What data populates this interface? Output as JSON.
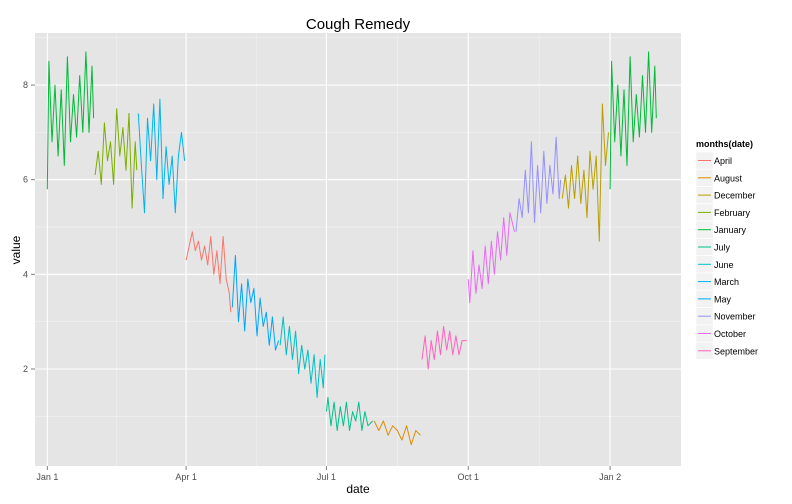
{
  "chart_data": {
    "type": "line",
    "title": "Cough Remedy",
    "xlabel": "date",
    "ylabel": "value",
    "xlim": [
      "2010-12-24",
      "2012-02-16"
    ],
    "ylim": [
      -0.05,
      9.1
    ],
    "x_ticks": [
      {
        "date": "2011-01-01",
        "label": "Jan 1"
      },
      {
        "date": "2011-04-01",
        "label": "Apr 1"
      },
      {
        "date": "2011-07-01",
        "label": "Jul 1"
      },
      {
        "date": "2011-10-01",
        "label": "Oct 1"
      },
      {
        "date": "2012-01-01",
        "label": "Jan 2"
      }
    ],
    "y_ticks": [
      2,
      4,
      6,
      8
    ],
    "grid": true,
    "legend_title": "months(date)",
    "legend_position": "right",
    "series": [
      {
        "name": "April",
        "color": "#F8766D",
        "points": [
          [
            "2011-04-01",
            4.3
          ],
          [
            "2011-04-03",
            4.6
          ],
          [
            "2011-04-05",
            4.9
          ],
          [
            "2011-04-07",
            4.5
          ],
          [
            "2011-04-09",
            4.7
          ],
          [
            "2011-04-11",
            4.3
          ],
          [
            "2011-04-13",
            4.6
          ],
          [
            "2011-04-15",
            4.2
          ],
          [
            "2011-04-17",
            4.8
          ],
          [
            "2011-04-19",
            4.0
          ],
          [
            "2011-04-21",
            4.5
          ],
          [
            "2011-04-23",
            3.8
          ],
          [
            "2011-04-25",
            4.8
          ],
          [
            "2011-04-27",
            3.9
          ],
          [
            "2011-04-29",
            3.6
          ],
          [
            "2011-04-30",
            3.2
          ]
        ]
      },
      {
        "name": "August",
        "color": "#DE8C00",
        "points": [
          [
            "2011-08-01",
            0.9
          ],
          [
            "2011-08-04",
            0.7
          ],
          [
            "2011-08-07",
            0.9
          ],
          [
            "2011-08-10",
            0.6
          ],
          [
            "2011-08-13",
            0.8
          ],
          [
            "2011-08-16",
            0.7
          ],
          [
            "2011-08-19",
            0.5
          ],
          [
            "2011-08-22",
            0.8
          ],
          [
            "2011-08-25",
            0.4
          ],
          [
            "2011-08-28",
            0.7
          ],
          [
            "2011-08-31",
            0.6
          ]
        ]
      },
      {
        "name": "December",
        "color": "#B79F00",
        "points": [
          [
            "2011-12-01",
            5.6
          ],
          [
            "2011-12-03",
            6.1
          ],
          [
            "2011-12-05",
            5.4
          ],
          [
            "2011-12-07",
            6.3
          ],
          [
            "2011-12-09",
            5.6
          ],
          [
            "2011-12-11",
            6.5
          ],
          [
            "2011-12-13",
            5.5
          ],
          [
            "2011-12-15",
            6.2
          ],
          [
            "2011-12-17",
            5.2
          ],
          [
            "2011-12-19",
            6.6
          ],
          [
            "2011-12-21",
            5.8
          ],
          [
            "2011-12-23",
            6.5
          ],
          [
            "2011-12-25",
            4.7
          ],
          [
            "2011-12-27",
            7.6
          ],
          [
            "2011-12-29",
            6.3
          ],
          [
            "2011-12-31",
            7.0
          ]
        ]
      },
      {
        "name": "February",
        "color": "#7CAE00",
        "points": [
          [
            "2011-02-01",
            6.1
          ],
          [
            "2011-02-03",
            6.6
          ],
          [
            "2011-02-05",
            5.9
          ],
          [
            "2011-02-07",
            7.2
          ],
          [
            "2011-02-09",
            6.4
          ],
          [
            "2011-02-11",
            6.8
          ],
          [
            "2011-02-13",
            5.9
          ],
          [
            "2011-02-15",
            7.5
          ],
          [
            "2011-02-17",
            6.5
          ],
          [
            "2011-02-19",
            7.1
          ],
          [
            "2011-02-21",
            6.2
          ],
          [
            "2011-02-23",
            7.4
          ],
          [
            "2011-02-25",
            5.4
          ],
          [
            "2011-02-27",
            6.8
          ],
          [
            "2011-02-28",
            6.2
          ]
        ]
      },
      {
        "name": "January",
        "color": "#00BA38",
        "points": [
          [
            "2011-01-01",
            5.8
          ],
          [
            "2011-01-02",
            8.5
          ],
          [
            "2011-01-04",
            6.8
          ],
          [
            "2011-01-06",
            8.0
          ],
          [
            "2011-01-08",
            6.5
          ],
          [
            "2011-01-10",
            7.9
          ],
          [
            "2011-01-12",
            6.3
          ],
          [
            "2011-01-14",
            8.6
          ],
          [
            "2011-01-16",
            6.8
          ],
          [
            "2011-01-18",
            7.8
          ],
          [
            "2011-01-20",
            6.9
          ],
          [
            "2011-01-22",
            8.2
          ],
          [
            "2011-01-24",
            7.0
          ],
          [
            "2011-01-26",
            8.7
          ],
          [
            "2011-01-28",
            7.0
          ],
          [
            "2011-01-30",
            8.4
          ],
          [
            "2011-01-31",
            7.3
          ]
        ]
      },
      {
        "name": "July",
        "color": "#00C08B",
        "points": [
          [
            "2011-07-01",
            1.1
          ],
          [
            "2011-07-02",
            1.4
          ],
          [
            "2011-07-04",
            0.8
          ],
          [
            "2011-07-06",
            1.3
          ],
          [
            "2011-07-08",
            0.7
          ],
          [
            "2011-07-10",
            1.2
          ],
          [
            "2011-07-12",
            0.8
          ],
          [
            "2011-07-14",
            1.3
          ],
          [
            "2011-07-16",
            0.7
          ],
          [
            "2011-07-18",
            1.1
          ],
          [
            "2011-07-20",
            0.9
          ],
          [
            "2011-07-22",
            1.3
          ],
          [
            "2011-07-24",
            0.7
          ],
          [
            "2011-07-26",
            1.1
          ],
          [
            "2011-07-28",
            0.8
          ],
          [
            "2011-07-31",
            0.9
          ]
        ]
      },
      {
        "name": "June",
        "color": "#00BFC4",
        "points": [
          [
            "2011-06-01",
            2.5
          ],
          [
            "2011-06-03",
            3.1
          ],
          [
            "2011-06-05",
            2.3
          ],
          [
            "2011-06-07",
            2.9
          ],
          [
            "2011-06-09",
            2.2
          ],
          [
            "2011-06-11",
            2.8
          ],
          [
            "2011-06-13",
            1.9
          ],
          [
            "2011-06-15",
            2.5
          ],
          [
            "2011-06-17",
            2.0
          ],
          [
            "2011-06-19",
            2.4
          ],
          [
            "2011-06-21",
            1.7
          ],
          [
            "2011-06-23",
            2.3
          ],
          [
            "2011-06-25",
            1.4
          ],
          [
            "2011-06-27",
            2.2
          ],
          [
            "2011-06-29",
            1.6
          ],
          [
            "2011-06-30",
            2.3
          ]
        ]
      },
      {
        "name": "March",
        "color": "#00B4EF",
        "points": [
          [
            "2011-03-01",
            7.4
          ],
          [
            "2011-03-03",
            6.3
          ],
          [
            "2011-03-05",
            5.3
          ],
          [
            "2011-03-07",
            7.3
          ],
          [
            "2011-03-09",
            6.4
          ],
          [
            "2011-03-11",
            7.6
          ],
          [
            "2011-03-13",
            6.0
          ],
          [
            "2011-03-15",
            7.7
          ],
          [
            "2011-03-17",
            5.6
          ],
          [
            "2011-03-19",
            6.7
          ],
          [
            "2011-03-21",
            5.9
          ],
          [
            "2011-03-23",
            6.5
          ],
          [
            "2011-03-25",
            5.3
          ],
          [
            "2011-03-27",
            6.5
          ],
          [
            "2011-03-29",
            7.0
          ],
          [
            "2011-03-31",
            6.4
          ]
        ]
      },
      {
        "name": "May",
        "color": "#00A5FF",
        "points": [
          [
            "2011-05-01",
            3.3
          ],
          [
            "2011-05-03",
            4.4
          ],
          [
            "2011-05-05",
            3.0
          ],
          [
            "2011-05-07",
            3.8
          ],
          [
            "2011-05-09",
            2.8
          ],
          [
            "2011-05-11",
            3.9
          ],
          [
            "2011-05-13",
            3.4
          ],
          [
            "2011-05-15",
            3.7
          ],
          [
            "2011-05-17",
            2.7
          ],
          [
            "2011-05-19",
            3.5
          ],
          [
            "2011-05-21",
            2.9
          ],
          [
            "2011-05-23",
            3.2
          ],
          [
            "2011-05-25",
            2.5
          ],
          [
            "2011-05-27",
            3.1
          ],
          [
            "2011-05-29",
            2.4
          ],
          [
            "2011-05-31",
            2.6
          ]
        ]
      },
      {
        "name": "November",
        "color": "#9590FF",
        "points": [
          [
            "2011-11-01",
            4.9
          ],
          [
            "2011-11-03",
            5.6
          ],
          [
            "2011-11-05",
            5.2
          ],
          [
            "2011-11-07",
            6.2
          ],
          [
            "2011-11-09",
            5.3
          ],
          [
            "2011-11-11",
            6.8
          ],
          [
            "2011-11-13",
            5.1
          ],
          [
            "2011-11-15",
            6.3
          ],
          [
            "2011-11-17",
            5.3
          ],
          [
            "2011-11-19",
            6.6
          ],
          [
            "2011-11-21",
            5.5
          ],
          [
            "2011-11-23",
            6.3
          ],
          [
            "2011-11-25",
            5.7
          ],
          [
            "2011-11-27",
            6.9
          ],
          [
            "2011-11-29",
            5.6
          ],
          [
            "2011-11-30",
            6.0
          ]
        ]
      },
      {
        "name": "October",
        "color": "#E76BF3",
        "points": [
          [
            "2011-10-01",
            3.9
          ],
          [
            "2011-10-02",
            3.4
          ],
          [
            "2011-10-04",
            4.5
          ],
          [
            "2011-10-06",
            3.6
          ],
          [
            "2011-10-08",
            4.2
          ],
          [
            "2011-10-10",
            3.7
          ],
          [
            "2011-10-12",
            4.6
          ],
          [
            "2011-10-14",
            3.8
          ],
          [
            "2011-10-16",
            4.7
          ],
          [
            "2011-10-18",
            4.0
          ],
          [
            "2011-10-20",
            4.9
          ],
          [
            "2011-10-22",
            4.3
          ],
          [
            "2011-10-24",
            5.2
          ],
          [
            "2011-10-26",
            4.4
          ],
          [
            "2011-10-28",
            5.3
          ],
          [
            "2011-10-31",
            4.9
          ]
        ]
      },
      {
        "name": "September",
        "color": "#FF62BC",
        "points": [
          [
            "2011-09-01",
            2.2
          ],
          [
            "2011-09-03",
            2.7
          ],
          [
            "2011-09-05",
            2.0
          ],
          [
            "2011-09-07",
            2.6
          ],
          [
            "2011-09-09",
            2.2
          ],
          [
            "2011-09-11",
            2.8
          ],
          [
            "2011-09-13",
            2.3
          ],
          [
            "2011-09-15",
            2.9
          ],
          [
            "2011-09-17",
            2.4
          ],
          [
            "2011-09-19",
            2.8
          ],
          [
            "2011-09-21",
            2.3
          ],
          [
            "2011-09-23",
            2.7
          ],
          [
            "2011-09-25",
            2.3
          ],
          [
            "2011-09-27",
            2.6
          ],
          [
            "2011-09-30",
            2.6
          ]
        ]
      },
      {
        "name": "",
        "color": "#00BA38",
        "points": [
          [
            "2012-01-01",
            5.8
          ],
          [
            "2012-01-02",
            8.5
          ],
          [
            "2012-01-04",
            6.8
          ],
          [
            "2012-01-06",
            8.0
          ],
          [
            "2012-01-08",
            6.5
          ],
          [
            "2012-01-10",
            7.9
          ],
          [
            "2012-01-12",
            6.3
          ],
          [
            "2012-01-14",
            8.6
          ],
          [
            "2012-01-16",
            6.8
          ],
          [
            "2012-01-18",
            7.8
          ],
          [
            "2012-01-20",
            6.9
          ],
          [
            "2012-01-22",
            8.2
          ],
          [
            "2012-01-24",
            7.0
          ],
          [
            "2012-01-26",
            8.7
          ],
          [
            "2012-01-28",
            7.0
          ],
          [
            "2012-01-30",
            8.4
          ],
          [
            "2012-01-31",
            7.3
          ]
        ]
      }
    ]
  }
}
